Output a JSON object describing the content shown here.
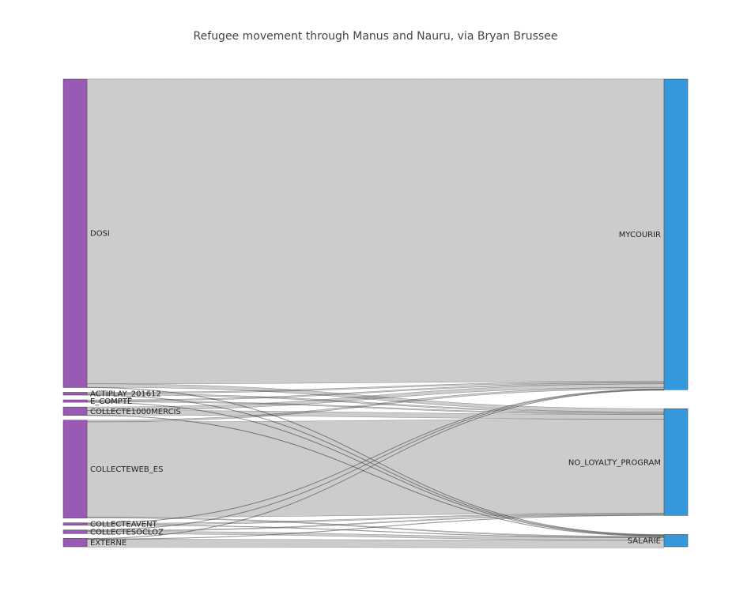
{
  "chart_data": {
    "type": "sankey",
    "title": "Refugee movement through Manus and Nauru, via Bryan Brussee",
    "colors": {
      "source": "#9b59b6",
      "target": "#3498db",
      "link": "#cccccc"
    },
    "sources": [
      {
        "id": "DOSI",
        "label": "DOSI"
      },
      {
        "id": "ACTIPLAY_201612",
        "label": "ACTIPLAY_201612"
      },
      {
        "id": "E_COMPTE",
        "label": "E_COMPTE"
      },
      {
        "id": "COLLECTE1000MERCIS",
        "label": "COLLECTE1000MERCIS"
      },
      {
        "id": "COLLECTEWEB_ES",
        "label": "COLLECTEWEB_ES"
      },
      {
        "id": "COLLECTEAVENT",
        "label": "COLLECTEAVENT"
      },
      {
        "id": "COLLECTESOCLOZ",
        "label": "COLLECTESOCLOZ"
      },
      {
        "id": "EXTERNE",
        "label": "EXTERNE"
      }
    ],
    "targets": [
      {
        "id": "MYCOURIR",
        "label": "MYCOURIR"
      },
      {
        "id": "NO_LOYALTY_PROGRAM",
        "label": "NO_LOYALTY_PROGRAM"
      },
      {
        "id": "SALARIE",
        "label": "SALARIE"
      }
    ],
    "links": [
      {
        "source": "DOSI",
        "target": "MYCOURIR",
        "value": 356
      },
      {
        "source": "DOSI",
        "target": "NO_LOYALTY_PROGRAM",
        "value": 4
      },
      {
        "source": "DOSI",
        "target": "SALARIE",
        "value": 0.3
      },
      {
        "source": "ACTIPLAY_201612",
        "target": "MYCOURIR",
        "value": 1.5
      },
      {
        "source": "ACTIPLAY_201612",
        "target": "NO_LOYALTY_PROGRAM",
        "value": 1.5
      },
      {
        "source": "ACTIPLAY_201612",
        "target": "SALARIE",
        "value": 0.3
      },
      {
        "source": "E_COMPTE",
        "target": "MYCOURIR",
        "value": 1.3
      },
      {
        "source": "E_COMPTE",
        "target": "NO_LOYALTY_PROGRAM",
        "value": 1.2
      },
      {
        "source": "E_COMPTE",
        "target": "SALARIE",
        "value": 0.3
      },
      {
        "source": "COLLECTE1000MERCIS",
        "target": "MYCOURIR",
        "value": 4
      },
      {
        "source": "COLLECTE1000MERCIS",
        "target": "NO_LOYALTY_PROGRAM",
        "value": 5.5
      },
      {
        "source": "COLLECTE1000MERCIS",
        "target": "SALARIE",
        "value": 0.3
      },
      {
        "source": "COLLECTEWEB_ES",
        "target": "MYCOURIR",
        "value": 2
      },
      {
        "source": "COLLECTEWEB_ES",
        "target": "NO_LOYALTY_PROGRAM",
        "value": 111
      },
      {
        "source": "COLLECTEWEB_ES",
        "target": "SALARIE",
        "value": 1
      },
      {
        "source": "COLLECTEAVENT",
        "target": "MYCOURIR",
        "value": 0.3
      },
      {
        "source": "COLLECTEAVENT",
        "target": "NO_LOYALTY_PROGRAM",
        "value": 1
      },
      {
        "source": "COLLECTEAVENT",
        "target": "SALARIE",
        "value": 0.3
      },
      {
        "source": "COLLECTESOCLOZ",
        "target": "MYCOURIR",
        "value": 0.3
      },
      {
        "source": "COLLECTESOCLOZ",
        "target": "NO_LOYALTY_PROGRAM",
        "value": 1
      },
      {
        "source": "COLLECTESOCLOZ",
        "target": "SALARIE",
        "value": 3
      },
      {
        "source": "EXTERNE",
        "target": "MYCOURIR",
        "value": 0.3
      },
      {
        "source": "EXTERNE",
        "target": "NO_LOYALTY_PROGRAM",
        "value": 0.5
      },
      {
        "source": "EXTERNE",
        "target": "SALARIE",
        "value": 9
      }
    ]
  }
}
